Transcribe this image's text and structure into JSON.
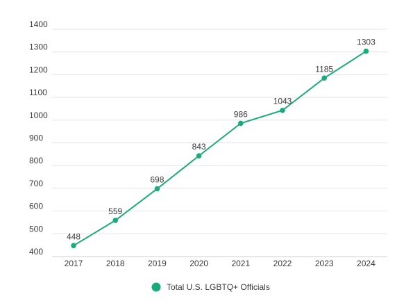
{
  "chart_data": {
    "type": "line",
    "title": "",
    "xlabel": "",
    "ylabel": "",
    "x": [
      "2017",
      "2018",
      "2019",
      "2020",
      "2021",
      "2022",
      "2023",
      "2024"
    ],
    "ylim": [
      400,
      1400
    ],
    "yticks": [
      400,
      500,
      600,
      700,
      800,
      900,
      1000,
      1100,
      1200,
      1300,
      1400
    ],
    "grid": true,
    "legend_position": "bottom-center",
    "series": [
      {
        "name": "Total U.S. LGBTQ+ Officials",
        "color": "#1aab7c",
        "values": [
          448,
          559,
          698,
          843,
          986,
          1043,
          1185,
          1303
        ],
        "labels": [
          "448",
          "559",
          "698",
          "843",
          "986",
          "1043",
          "1185",
          "1303"
        ]
      }
    ]
  }
}
